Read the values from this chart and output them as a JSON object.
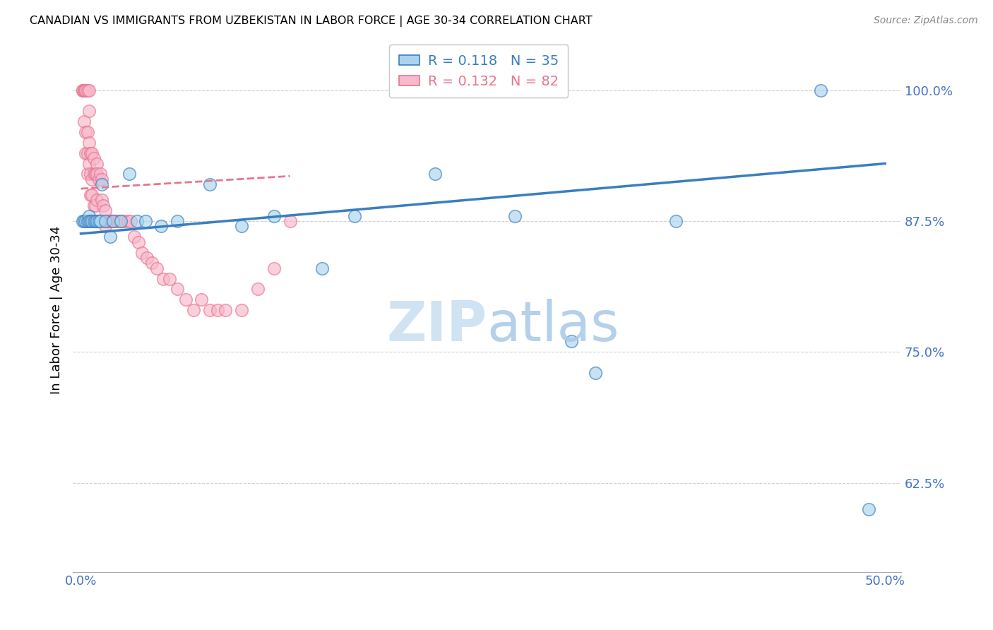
{
  "title": "CANADIAN VS IMMIGRANTS FROM UZBEKISTAN IN LABOR FORCE | AGE 30-34 CORRELATION CHART",
  "source": "Source: ZipAtlas.com",
  "ylabel": "In Labor Force | Age 30-34",
  "x_ticks": [
    0.0,
    0.1,
    0.2,
    0.3,
    0.4,
    0.5
  ],
  "x_tick_labels": [
    "0.0%",
    "",
    "",
    "",
    "",
    "50.0%"
  ],
  "y_ticks": [
    0.625,
    0.75,
    0.875,
    1.0
  ],
  "y_tick_labels": [
    "62.5%",
    "75.0%",
    "87.5%",
    "100.0%"
  ],
  "xlim": [
    -0.005,
    0.51
  ],
  "ylim": [
    0.54,
    1.04
  ],
  "canadians_R": 0.118,
  "canadians_N": 35,
  "uzbekistan_R": 0.132,
  "uzbekistan_N": 82,
  "canadian_color": "#aad4ee",
  "uzbekistan_color": "#f9b8cc",
  "canadian_line_color": "#3a7ebf",
  "uzbekistan_line_color": "#e8758f",
  "watermark": "ZIPatlas",
  "watermark_color": "#cde4f5",
  "canadian_x": [
    0.001,
    0.002,
    0.003,
    0.004,
    0.005,
    0.005,
    0.006,
    0.007,
    0.008,
    0.009,
    0.01,
    0.011,
    0.012,
    0.013,
    0.015,
    0.018,
    0.02,
    0.025,
    0.03,
    0.035,
    0.04,
    0.05,
    0.06,
    0.08,
    0.1,
    0.12,
    0.15,
    0.17,
    0.22,
    0.27,
    0.305,
    0.32,
    0.37,
    0.46,
    0.49
  ],
  "canadian_y": [
    0.875,
    0.875,
    0.875,
    0.875,
    0.88,
    0.875,
    0.875,
    0.875,
    0.875,
    0.875,
    0.875,
    0.875,
    0.875,
    0.91,
    0.875,
    0.86,
    0.875,
    0.875,
    0.92,
    0.875,
    0.875,
    0.87,
    0.875,
    0.91,
    0.87,
    0.88,
    0.83,
    0.88,
    0.92,
    0.88,
    0.76,
    0.73,
    0.875,
    1.0,
    0.6
  ],
  "uzbekistan_x": [
    0.001,
    0.001,
    0.002,
    0.002,
    0.002,
    0.003,
    0.003,
    0.003,
    0.003,
    0.004,
    0.004,
    0.004,
    0.004,
    0.005,
    0.005,
    0.005,
    0.005,
    0.006,
    0.006,
    0.006,
    0.007,
    0.007,
    0.007,
    0.007,
    0.008,
    0.008,
    0.008,
    0.009,
    0.009,
    0.009,
    0.01,
    0.01,
    0.01,
    0.01,
    0.01,
    0.011,
    0.011,
    0.012,
    0.012,
    0.013,
    0.013,
    0.013,
    0.014,
    0.014,
    0.015,
    0.015,
    0.015,
    0.016,
    0.016,
    0.017,
    0.018,
    0.018,
    0.019,
    0.02,
    0.02,
    0.021,
    0.022,
    0.023,
    0.024,
    0.025,
    0.027,
    0.029,
    0.031,
    0.033,
    0.036,
    0.038,
    0.041,
    0.044,
    0.047,
    0.051,
    0.055,
    0.06,
    0.065,
    0.07,
    0.075,
    0.08,
    0.085,
    0.09,
    0.1,
    0.11,
    0.12,
    0.13
  ],
  "uzbekistan_y": [
    1.0,
    1.0,
    1.0,
    1.0,
    0.97,
    1.0,
    1.0,
    0.96,
    0.94,
    1.0,
    0.96,
    0.94,
    0.92,
    1.0,
    0.98,
    0.95,
    0.93,
    0.94,
    0.92,
    0.9,
    0.94,
    0.915,
    0.9,
    0.875,
    0.935,
    0.92,
    0.89,
    0.92,
    0.89,
    0.875,
    0.93,
    0.92,
    0.895,
    0.875,
    0.875,
    0.915,
    0.875,
    0.92,
    0.875,
    0.915,
    0.895,
    0.875,
    0.89,
    0.875,
    0.885,
    0.875,
    0.87,
    0.875,
    0.875,
    0.875,
    0.875,
    0.875,
    0.875,
    0.875,
    0.875,
    0.875,
    0.875,
    0.875,
    0.875,
    0.875,
    0.875,
    0.875,
    0.875,
    0.86,
    0.855,
    0.845,
    0.84,
    0.835,
    0.83,
    0.82,
    0.82,
    0.81,
    0.8,
    0.79,
    0.8,
    0.79,
    0.79,
    0.79,
    0.79,
    0.81,
    0.83,
    0.875
  ],
  "trend_canadian_x0": 0.0,
  "trend_canadian_x1": 0.5,
  "trend_canadian_y0": 0.863,
  "trend_canadian_y1": 0.93,
  "trend_uzbekistan_x0": 0.0,
  "trend_uzbekistan_x1": 0.13,
  "trend_uzbekistan_y0": 0.906,
  "trend_uzbekistan_y1": 0.918
}
